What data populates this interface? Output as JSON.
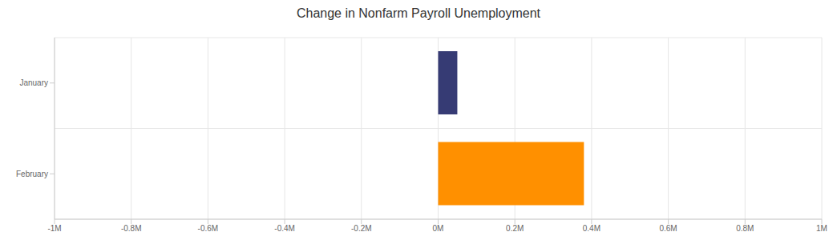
{
  "chart_data": {
    "type": "bar",
    "title": "Change in Nonfarm Payroll Unemployment",
    "orientation": "horizontal",
    "categories": [
      "January",
      "February"
    ],
    "values": [
      50000,
      380000
    ],
    "colors": [
      "#363b74",
      "#ff9000"
    ],
    "xlim": [
      -1000000,
      1000000
    ],
    "xticks": [
      {
        "value": -1000000,
        "label": "-1M"
      },
      {
        "value": -800000,
        "label": "-0.8M"
      },
      {
        "value": -600000,
        "label": "-0.6M"
      },
      {
        "value": -400000,
        "label": "-0.4M"
      },
      {
        "value": -200000,
        "label": "-0.2M"
      },
      {
        "value": 0,
        "label": "0M"
      },
      {
        "value": 200000,
        "label": "0.2M"
      },
      {
        "value": 400000,
        "label": "0.4M"
      },
      {
        "value": 600000,
        "label": "0.6M"
      },
      {
        "value": 800000,
        "label": "0.8M"
      },
      {
        "value": 1000000,
        "label": "1M"
      }
    ],
    "grid": true
  }
}
